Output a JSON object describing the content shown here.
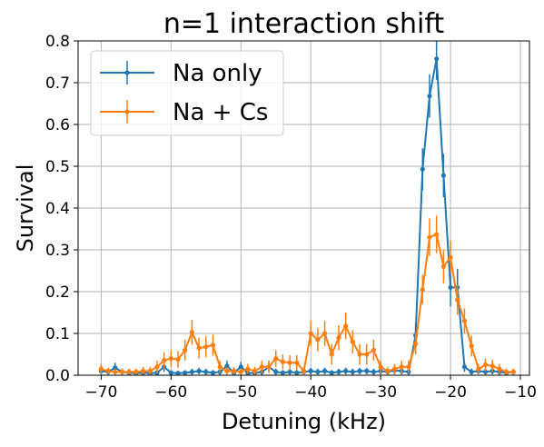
{
  "chart_data": {
    "type": "line",
    "title": "n=1 interaction shift",
    "xlabel": "Detuning (kHz)",
    "ylabel": "Survival",
    "xlim": [
      -73.3,
      -8.7
    ],
    "ylim": [
      0.0,
      0.8
    ],
    "xticks": [
      -70,
      -60,
      -50,
      -40,
      -30,
      -20,
      -10
    ],
    "xtick_labels": [
      "−70",
      "−60",
      "−50",
      "−40",
      "−30",
      "−20",
      "−10"
    ],
    "yticks": [
      0.0,
      0.1,
      0.2,
      0.3,
      0.4,
      0.5,
      0.6,
      0.7,
      0.8
    ],
    "ytick_labels": [
      "0.0",
      "0.1",
      "0.2",
      "0.3",
      "0.4",
      "0.5",
      "0.6",
      "0.7",
      "0.8"
    ],
    "grid": true,
    "legend_position": "upper-left",
    "series": [
      {
        "name": "Na only",
        "color": "#1f77b4",
        "x": [
          -70,
          -69,
          -68,
          -67,
          -66,
          -65,
          -64,
          -63,
          -62,
          -61,
          -60,
          -59,
          -58,
          -57,
          -56,
          -55,
          -54,
          -53,
          -52,
          -51,
          -50,
          -49,
          -48,
          -47,
          -46,
          -45,
          -44,
          -43,
          -42,
          -41,
          -40,
          -39,
          -38,
          -37,
          -36,
          -35,
          -34,
          -33,
          -32,
          -31,
          -30,
          -29,
          -28,
          -27,
          -26,
          -25,
          -24,
          -23,
          -22,
          -21,
          -20,
          -19,
          -18,
          -17,
          -16,
          -15,
          -14,
          -13,
          -12,
          -11
        ],
        "y": [
          0.01,
          0.008,
          0.018,
          0.008,
          0.006,
          0.005,
          0.006,
          0.005,
          0.006,
          0.02,
          0.006,
          0.005,
          0.006,
          0.008,
          0.01,
          0.008,
          0.006,
          0.008,
          0.022,
          0.006,
          0.02,
          0.005,
          0.006,
          0.008,
          0.02,
          0.008,
          0.006,
          0.008,
          0.006,
          0.008,
          0.01,
          0.008,
          0.01,
          0.006,
          0.008,
          0.01,
          0.008,
          0.01,
          0.01,
          0.008,
          0.01,
          0.008,
          0.012,
          0.01,
          0.008,
          0.095,
          0.493,
          0.668,
          0.757,
          0.478,
          0.21,
          0.21,
          0.02,
          0.008,
          0.01,
          0.008,
          0.01,
          0.008,
          0.006,
          0.008
        ],
        "err": [
          0.01,
          0.008,
          0.012,
          0.008,
          0.006,
          0.005,
          0.006,
          0.005,
          0.006,
          0.012,
          0.006,
          0.005,
          0.006,
          0.008,
          0.008,
          0.008,
          0.006,
          0.008,
          0.013,
          0.006,
          0.012,
          0.005,
          0.006,
          0.008,
          0.012,
          0.008,
          0.006,
          0.008,
          0.006,
          0.008,
          0.008,
          0.008,
          0.008,
          0.006,
          0.008,
          0.008,
          0.008,
          0.008,
          0.008,
          0.008,
          0.008,
          0.008,
          0.01,
          0.008,
          0.008,
          0.03,
          0.05,
          0.052,
          0.05,
          0.052,
          0.045,
          0.045,
          0.012,
          0.008,
          0.008,
          0.008,
          0.008,
          0.008,
          0.006,
          0.008
        ]
      },
      {
        "name": "Na + Cs",
        "color": "#ff7f0e",
        "x": [
          -70,
          -69,
          -68,
          -67,
          -66,
          -65,
          -64,
          -63,
          -62,
          -61,
          -60,
          -59,
          -58,
          -57,
          -56,
          -55,
          -54,
          -53,
          -52,
          -51,
          -50,
          -49,
          -48,
          -47,
          -46,
          -45,
          -44,
          -43,
          -42,
          -41,
          -40,
          -39,
          -38,
          -37,
          -36,
          -35,
          -34,
          -33,
          -32,
          -31,
          -30,
          -29,
          -28,
          -27,
          -26,
          -25,
          -24,
          -23,
          -22,
          -21,
          -20,
          -19,
          -18,
          -17,
          -16,
          -15,
          -14,
          -13,
          -12,
          -11
        ],
        "y": [
          0.015,
          0.01,
          0.008,
          0.008,
          0.008,
          0.008,
          0.01,
          0.01,
          0.02,
          0.035,
          0.04,
          0.038,
          0.06,
          0.103,
          0.065,
          0.068,
          0.072,
          0.02,
          0.01,
          0.01,
          0.008,
          0.015,
          0.01,
          0.02,
          0.02,
          0.04,
          0.032,
          0.03,
          0.03,
          0.01,
          0.1,
          0.085,
          0.1,
          0.05,
          0.09,
          0.118,
          0.08,
          0.05,
          0.05,
          0.06,
          0.02,
          0.01,
          0.015,
          0.02,
          0.02,
          0.075,
          0.205,
          0.33,
          0.337,
          0.26,
          0.282,
          0.18,
          0.13,
          0.07,
          0.015,
          0.025,
          0.022,
          0.015,
          0.008,
          0.008
        ],
        "err": [
          0.012,
          0.008,
          0.008,
          0.008,
          0.008,
          0.008,
          0.01,
          0.01,
          0.015,
          0.02,
          0.02,
          0.02,
          0.025,
          0.03,
          0.025,
          0.025,
          0.025,
          0.015,
          0.01,
          0.01,
          0.008,
          0.012,
          0.01,
          0.015,
          0.015,
          0.02,
          0.018,
          0.018,
          0.018,
          0.01,
          0.03,
          0.028,
          0.03,
          0.025,
          0.03,
          0.032,
          0.028,
          0.025,
          0.025,
          0.025,
          0.015,
          0.01,
          0.012,
          0.015,
          0.015,
          0.025,
          0.035,
          0.045,
          0.045,
          0.04,
          0.04,
          0.035,
          0.03,
          0.025,
          0.012,
          0.015,
          0.015,
          0.012,
          0.008,
          0.008
        ]
      }
    ]
  }
}
